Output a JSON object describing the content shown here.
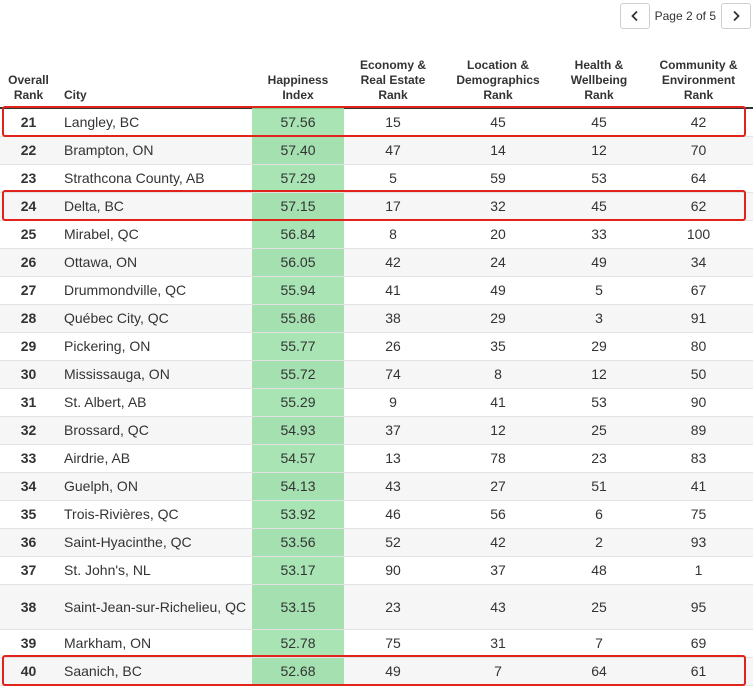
{
  "pager": {
    "label": "Page 2 of 5",
    "prev_icon": "chevron-left-icon",
    "next_icon": "chevron-right-icon"
  },
  "table": {
    "headers": {
      "rank": [
        "Overall",
        "Rank"
      ],
      "city": [
        "City"
      ],
      "happiness": [
        "Happiness",
        "Index"
      ],
      "economy": [
        "Economy &",
        "Real Estate",
        "Rank"
      ],
      "location": [
        "Location &",
        "Demographics",
        "Rank"
      ],
      "health": [
        "Health &",
        "Wellbeing",
        "Rank"
      ],
      "community": [
        "Community &",
        "Environment",
        "Rank"
      ]
    },
    "rows": [
      {
        "rank": "21",
        "city": "Langley, BC",
        "happiness": "57.56",
        "economy": "15",
        "location": "45",
        "health": "45",
        "community": "42",
        "highlighted": true
      },
      {
        "rank": "22",
        "city": "Brampton, ON",
        "happiness": "57.40",
        "economy": "47",
        "location": "14",
        "health": "12",
        "community": "70"
      },
      {
        "rank": "23",
        "city": "Strathcona County, AB",
        "happiness": "57.29",
        "economy": "5",
        "location": "59",
        "health": "53",
        "community": "64"
      },
      {
        "rank": "24",
        "city": "Delta, BC",
        "happiness": "57.15",
        "economy": "17",
        "location": "32",
        "health": "45",
        "community": "62",
        "highlighted": true
      },
      {
        "rank": "25",
        "city": "Mirabel, QC",
        "happiness": "56.84",
        "economy": "8",
        "location": "20",
        "health": "33",
        "community": "100"
      },
      {
        "rank": "26",
        "city": "Ottawa, ON",
        "happiness": "56.05",
        "economy": "42",
        "location": "24",
        "health": "49",
        "community": "34"
      },
      {
        "rank": "27",
        "city": "Drummondville, QC",
        "happiness": "55.94",
        "economy": "41",
        "location": "49",
        "health": "5",
        "community": "67"
      },
      {
        "rank": "28",
        "city": "Québec City, QC",
        "happiness": "55.86",
        "economy": "38",
        "location": "29",
        "health": "3",
        "community": "91"
      },
      {
        "rank": "29",
        "city": "Pickering, ON",
        "happiness": "55.77",
        "economy": "26",
        "location": "35",
        "health": "29",
        "community": "80"
      },
      {
        "rank": "30",
        "city": "Mississauga, ON",
        "happiness": "55.72",
        "economy": "74",
        "location": "8",
        "health": "12",
        "community": "50"
      },
      {
        "rank": "31",
        "city": "St. Albert, AB",
        "happiness": "55.29",
        "economy": "9",
        "location": "41",
        "health": "53",
        "community": "90"
      },
      {
        "rank": "32",
        "city": "Brossard, QC",
        "happiness": "54.93",
        "economy": "37",
        "location": "12",
        "health": "25",
        "community": "89"
      },
      {
        "rank": "33",
        "city": "Airdrie, AB",
        "happiness": "54.57",
        "economy": "13",
        "location": "78",
        "health": "23",
        "community": "83"
      },
      {
        "rank": "34",
        "city": "Guelph, ON",
        "happiness": "54.13",
        "economy": "43",
        "location": "27",
        "health": "51",
        "community": "41"
      },
      {
        "rank": "35",
        "city": "Trois-Rivières, QC",
        "happiness": "53.92",
        "economy": "46",
        "location": "56",
        "health": "6",
        "community": "75"
      },
      {
        "rank": "36",
        "city": "Saint-Hyacinthe, QC",
        "happiness": "53.56",
        "economy": "52",
        "location": "42",
        "health": "2",
        "community": "93"
      },
      {
        "rank": "37",
        "city": "St. John's, NL",
        "happiness": "53.17",
        "economy": "90",
        "location": "37",
        "health": "48",
        "community": "1"
      },
      {
        "rank": "38",
        "city": "Saint-Jean-sur-Richelieu, QC",
        "happiness": "53.15",
        "economy": "23",
        "location": "43",
        "health": "25",
        "community": "95"
      },
      {
        "rank": "39",
        "city": "Markham, ON",
        "happiness": "52.78",
        "economy": "75",
        "location": "31",
        "health": "7",
        "community": "69"
      },
      {
        "rank": "40",
        "city": "Saanich, BC",
        "happiness": "52.68",
        "economy": "49",
        "location": "7",
        "health": "64",
        "community": "61",
        "highlighted": true
      }
    ]
  },
  "colors": {
    "happiness_cell": "#a8e4b4",
    "highlight_border": "#e0241c",
    "header_rule": "#333333",
    "zebra": "#f6f6f6"
  }
}
